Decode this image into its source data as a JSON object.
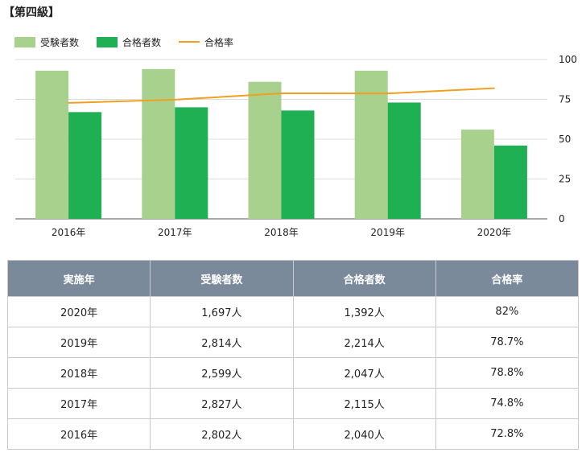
{
  "title": "【第四級】",
  "chart_data": {
    "type": "bar",
    "categories": [
      "2016年",
      "2017年",
      "2018年",
      "2019年",
      "2020年"
    ],
    "series": [
      {
        "name": "受験者数",
        "kind": "bar",
        "color": "#a8d18d",
        "values": [
          93,
          94,
          86,
          93,
          56
        ]
      },
      {
        "name": "合格者数",
        "kind": "bar",
        "color": "#1eb053",
        "values": [
          67,
          70,
          68,
          73,
          46
        ]
      },
      {
        "name": "合格率",
        "kind": "line",
        "color": "#f0a020",
        "values": [
          72.8,
          74.8,
          78.8,
          78.7,
          82
        ]
      }
    ],
    "yticks": [
      "100",
      "75",
      "50",
      "25",
      "0"
    ],
    "ylim": [
      0,
      100
    ],
    "legend": "top-left"
  },
  "table": {
    "headers": [
      "実施年",
      "受験者数",
      "合格者数",
      "合格率"
    ],
    "rows": [
      [
        "2020年",
        "1,697人",
        "1,392人",
        "82%"
      ],
      [
        "2019年",
        "2,814人",
        "2,214人",
        "78.7%"
      ],
      [
        "2018年",
        "2,599人",
        "2,047人",
        "78.8%"
      ],
      [
        "2017年",
        "2,827人",
        "2,115人",
        "74.8%"
      ],
      [
        "2016年",
        "2,802人",
        "2,040人",
        "72.8%"
      ]
    ]
  }
}
